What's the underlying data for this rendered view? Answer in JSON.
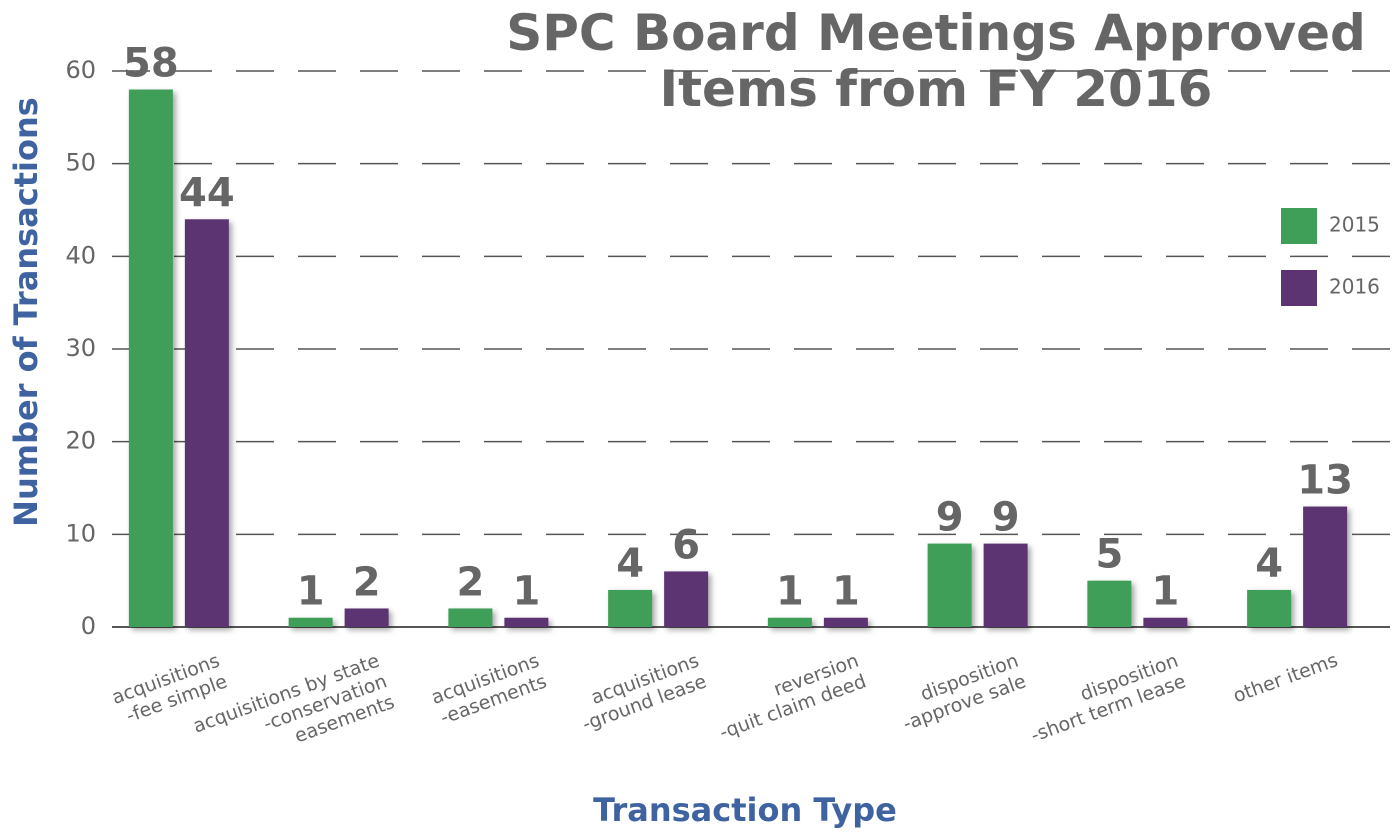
{
  "chart_data": {
    "type": "bar",
    "title": "SPC Board Meetings Approved\nItems from FY 2016",
    "x_label": "Transaction Type",
    "y_label": "Number of Transactions",
    "categories": [
      "acquisitions\n-fee simple",
      "acquisitions by state\n-conservation\neasements",
      "acquisitions\n-easements",
      "acquisitions\n-ground lease",
      "reversion\n-quit claim deed",
      "disposition\n-approve sale",
      "disposition\n-short term lease",
      "other items"
    ],
    "series": [
      {
        "name": "2015",
        "color": "#3f9f58",
        "values": [
          58,
          1,
          2,
          4,
          1,
          9,
          5,
          4
        ]
      },
      {
        "name": "2016",
        "color": "#5c3472",
        "values": [
          44,
          2,
          1,
          6,
          1,
          9,
          1,
          13
        ]
      }
    ],
    "ylim": [
      0,
      60
    ],
    "yticks": [
      0,
      10,
      20,
      30,
      40,
      50,
      60
    ],
    "grid": true,
    "legend": "right"
  }
}
